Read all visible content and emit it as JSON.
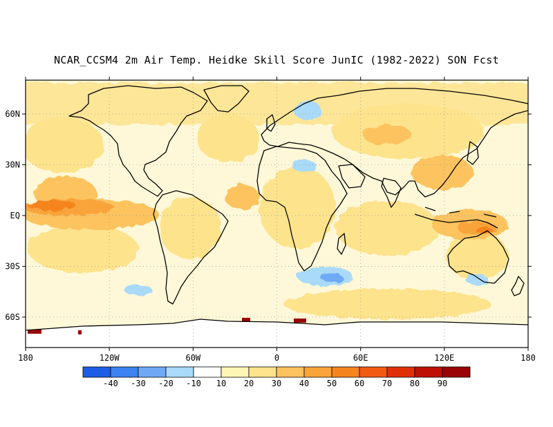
{
  "title": "NCAR_CCSM4 2m Air Temp. Heidke Skill Score JunIC (1982-2022) SON Fcst",
  "map": {
    "lon_range": [
      -180,
      180
    ],
    "lat_range": [
      -78,
      80
    ],
    "x_ticks": [
      {
        "lon": -180,
        "label": "180"
      },
      {
        "lon": -120,
        "label": "120W"
      },
      {
        "lon": -60,
        "label": "60W"
      },
      {
        "lon": 0,
        "label": "0"
      },
      {
        "lon": 60,
        "label": "60E"
      },
      {
        "lon": 120,
        "label": "120E"
      },
      {
        "lon": 180,
        "label": "180"
      }
    ],
    "y_ticks": [
      {
        "lat": 60,
        "label": "60N"
      },
      {
        "lat": 30,
        "label": "30N"
      },
      {
        "lat": 0,
        "label": "EQ"
      },
      {
        "lat": -30,
        "label": "30S"
      },
      {
        "lat": -60,
        "label": "60S"
      }
    ],
    "grid_lines": "dotted",
    "coastlines": true
  },
  "colorbar": {
    "bins": [
      {
        "color": "#1e5ee6",
        "label": "-40"
      },
      {
        "color": "#3c82f0",
        "label": "-30"
      },
      {
        "color": "#6fa9f5",
        "label": "-20"
      },
      {
        "color": "#a9daf9",
        "label": "-10"
      },
      {
        "color": "#ffffff",
        "label": "10"
      },
      {
        "color": "#fff6b5",
        "label": "20"
      },
      {
        "color": "#fde38c",
        "label": "30"
      },
      {
        "color": "#fcc35f",
        "label": "40"
      },
      {
        "color": "#f9a43a",
        "label": "50"
      },
      {
        "color": "#f6841e",
        "label": "60"
      },
      {
        "color": "#f25a12",
        "label": "70"
      },
      {
        "color": "#e0300a",
        "label": "80"
      },
      {
        "color": "#bf1006",
        "label": "90"
      },
      {
        "color": "#9a0404",
        "label": ""
      }
    ]
  },
  "colors": {
    "ocean_bg": "#fff8d8",
    "skill_low": "#fde38c",
    "skill_mid": "#fcc35f",
    "skill_high": "#f9a43a",
    "skill_peak": "#f6841e",
    "negative": "#a9daf9",
    "negative_strong": "#6fa9f5",
    "antarctica": "#ffffff",
    "hot_spot": "#9a0404"
  }
}
